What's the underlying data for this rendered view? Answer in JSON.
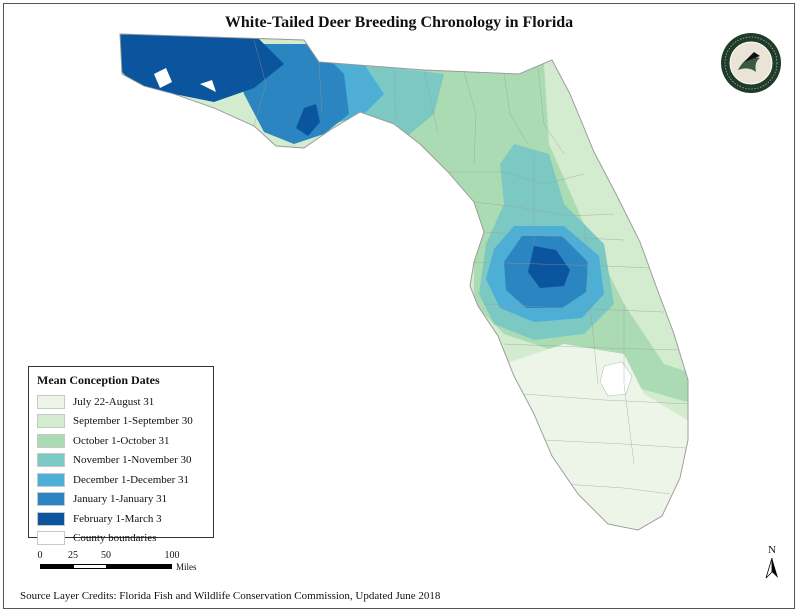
{
  "title": "White-Tailed Deer Breeding Chronology in Florida",
  "logo": {
    "text": "FLORIDA FISH AND WILDLIFE CONSERVATION COMMISSION",
    "icon": "fwc-seal-icon",
    "colors": {
      "ring": "#1f3b2a",
      "inner": "#e9e4d6"
    }
  },
  "legend": {
    "title": "Mean Conception Dates",
    "items": [
      {
        "label": "July 22-August 31",
        "color": "#edf5e8"
      },
      {
        "label": "September 1-September 30",
        "color": "#d3ebcf"
      },
      {
        "label": "October 1-October 31",
        "color": "#aadbb2"
      },
      {
        "label": "November 1-November 30",
        "color": "#7cc9c4"
      },
      {
        "label": "December 1-December 31",
        "color": "#4daed6"
      },
      {
        "label": "January 1-January 31",
        "color": "#2b85c0"
      },
      {
        "label": "February 1-March 3",
        "color": "#0b559f"
      },
      {
        "label": "County boundaries",
        "color": "#ffffff"
      }
    ]
  },
  "scale": {
    "ticks": [
      "0",
      "25",
      "50",
      "100"
    ],
    "unit": "Miles"
  },
  "north": {
    "label": "N",
    "icon": "north-arrow-icon"
  },
  "credits": "Source Layer Credits: Florida Fish and Wildlife Conservation Commission, Updated June 2018"
}
